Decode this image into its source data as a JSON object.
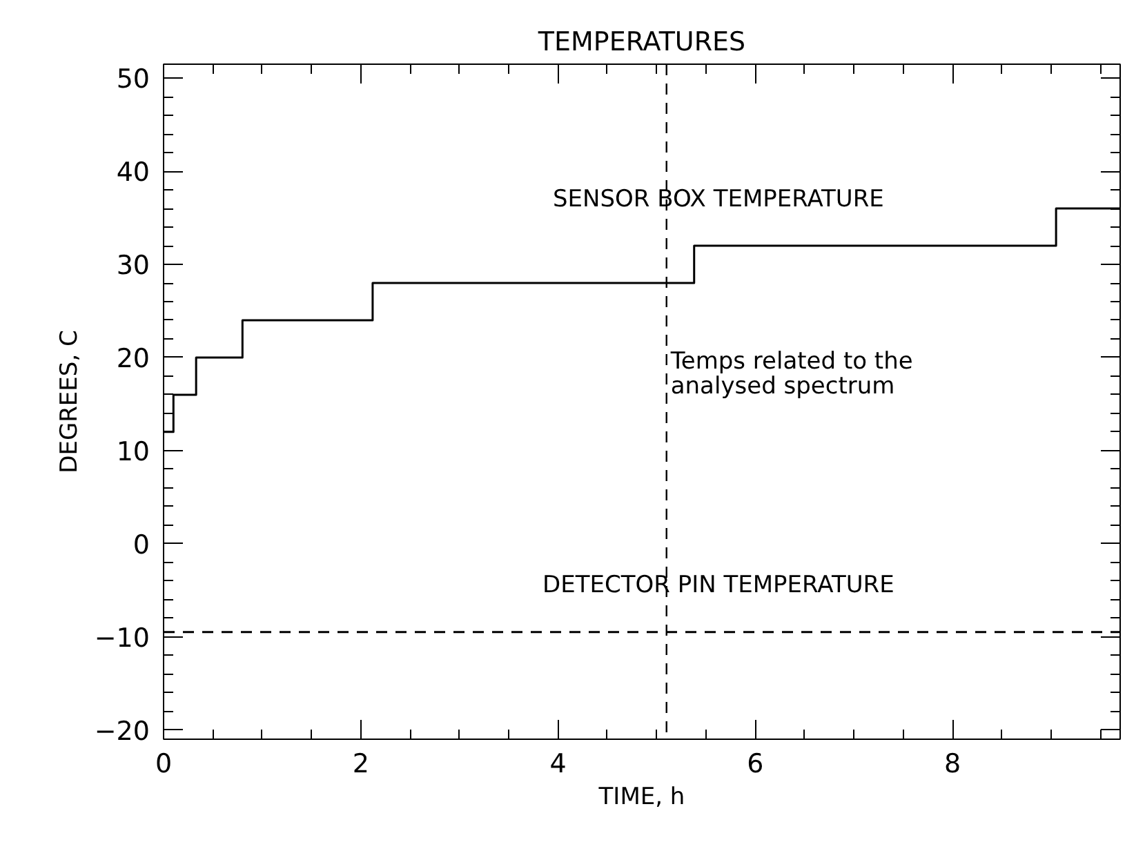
{
  "chart_data": {
    "type": "step",
    "title": "TEMPERATURES",
    "xlabel": "TIME, h",
    "ylabel": "DEGREES, C",
    "xlim": [
      0,
      9.7
    ],
    "ylim": [
      -21,
      51.5
    ],
    "xticks": [
      0,
      2,
      4,
      6,
      8
    ],
    "yticks": [
      -20,
      -10,
      0,
      10,
      20,
      30,
      40,
      50
    ],
    "series": [
      {
        "name": "SENSOR BOX TEMPERATURE",
        "color": "#000000",
        "x": [
          0,
          0.1,
          0.33,
          0.8,
          2.12,
          5.38,
          9.05,
          9.7
        ],
        "values": [
          12,
          16,
          20,
          24,
          28,
          32,
          36,
          36
        ]
      },
      {
        "name": "DETECTOR PIN TEMPERATURE",
        "color": "#000000",
        "type": "line",
        "line_style": "dashed",
        "x": [
          0,
          9.7
        ],
        "values": [
          -9.5,
          -9.5
        ]
      }
    ],
    "ref_lines": [
      {
        "axis": "x",
        "value": 5.1,
        "label": "Temps related to the\nanalysed spectrum",
        "line_style": "dashed",
        "color": "#000000"
      }
    ],
    "grid": false
  }
}
